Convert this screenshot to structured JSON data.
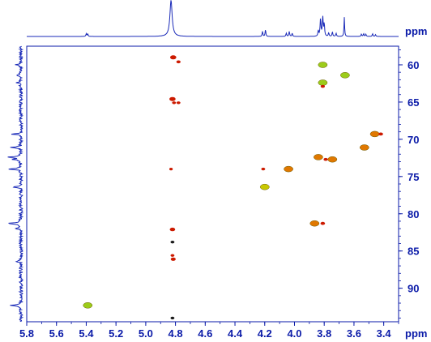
{
  "chart_data": {
    "type": "scatter",
    "x_axis": {
      "unit": "ppm",
      "range": [
        5.8,
        3.3
      ],
      "reversed": true,
      "ticks": [
        "5.8",
        "5.6",
        "5.4",
        "5.2",
        "5.0",
        "4.8",
        "4.6",
        "4.4",
        "4.2",
        "4.0",
        "3.8",
        "3.6",
        "3.4"
      ]
    },
    "y_axis": {
      "unit": "ppm",
      "range": [
        57.5,
        94.5
      ],
      "reversed": true,
      "side": "right",
      "ticks": [
        "60",
        "65",
        "70",
        "75",
        "80",
        "85",
        "90"
      ]
    },
    "top_projection": {
      "peaks": [
        {
          "x": 5.4,
          "h": 0.12,
          "w": 0.003
        },
        {
          "x": 5.39,
          "h": 0.12,
          "w": 0.003
        },
        {
          "x": 4.83,
          "h": 1.6,
          "w": 0.009
        },
        {
          "x": 4.215,
          "h": 0.22,
          "w": 0.003
        },
        {
          "x": 4.195,
          "h": 0.3,
          "w": 0.003
        },
        {
          "x": 4.055,
          "h": 0.15,
          "w": 0.003
        },
        {
          "x": 4.035,
          "h": 0.22,
          "w": 0.003
        },
        {
          "x": 4.015,
          "h": 0.14,
          "w": 0.003
        },
        {
          "x": 3.84,
          "h": 0.25,
          "w": 0.003
        },
        {
          "x": 3.825,
          "h": 0.75,
          "w": 0.0035
        },
        {
          "x": 3.81,
          "h": 0.85,
          "w": 0.0035
        },
        {
          "x": 3.8,
          "h": 0.55,
          "w": 0.003
        },
        {
          "x": 3.77,
          "h": 0.16,
          "w": 0.003
        },
        {
          "x": 3.745,
          "h": 0.2,
          "w": 0.003
        },
        {
          "x": 3.72,
          "h": 0.14,
          "w": 0.003
        },
        {
          "x": 3.665,
          "h": 0.85,
          "w": 0.0025
        },
        {
          "x": 3.55,
          "h": 0.1,
          "w": 0.003
        },
        {
          "x": 3.535,
          "h": 0.12,
          "w": 0.003
        },
        {
          "x": 3.52,
          "h": 0.1,
          "w": 0.003
        },
        {
          "x": 3.475,
          "h": 0.12,
          "w": 0.003
        },
        {
          "x": 3.455,
          "h": 0.08,
          "w": 0.003
        }
      ]
    },
    "left_projection": {
      "peaks": [
        {
          "y": 60.0,
          "h": 0.35
        },
        {
          "y": 61.4,
          "h": 0.4
        },
        {
          "y": 62.4,
          "h": 0.45
        },
        {
          "y": 69.3,
          "h": 0.6
        },
        {
          "y": 71.1,
          "h": 0.7
        },
        {
          "y": 72.4,
          "h": 0.85
        },
        {
          "y": 72.7,
          "h": 0.6
        },
        {
          "y": 74.0,
          "h": 1.0
        },
        {
          "y": 76.4,
          "h": 0.5
        },
        {
          "y": 81.3,
          "h": 1.0
        },
        {
          "y": 82.0,
          "h": 0.35
        },
        {
          "y": 86.4,
          "h": 0.3
        },
        {
          "y": 92.3,
          "h": 0.7
        }
      ]
    },
    "cross_peaks": [
      {
        "x": 4.815,
        "y": 59.0,
        "color": "#cc1a00",
        "size": 0.6
      },
      {
        "x": 4.78,
        "y": 59.6,
        "color": "#cc1a00",
        "size": 0.35
      },
      {
        "x": 3.81,
        "y": 60.0,
        "color": "#9ccc1a",
        "size": 1.0
      },
      {
        "x": 3.66,
        "y": 61.4,
        "color": "#9ccc1a",
        "size": 1.0
      },
      {
        "x": 3.81,
        "y": 62.4,
        "color": "#9ccc1a",
        "size": 1.0
      },
      {
        "x": 3.81,
        "y": 62.9,
        "color": "#cc1a00",
        "size": 0.35
      },
      {
        "x": 4.82,
        "y": 64.6,
        "color": "#cc1a00",
        "size": 0.6
      },
      {
        "x": 4.81,
        "y": 65.1,
        "color": "#cc1a00",
        "size": 0.3
      },
      {
        "x": 4.78,
        "y": 65.1,
        "color": "#cc1a00",
        "size": 0.3
      },
      {
        "x": 3.46,
        "y": 69.3,
        "color": "#e07800",
        "size": 1.0
      },
      {
        "x": 3.42,
        "y": 69.3,
        "color": "#cc1a00",
        "size": 0.4
      },
      {
        "x": 3.53,
        "y": 71.1,
        "color": "#e07800",
        "size": 1.0
      },
      {
        "x": 3.84,
        "y": 72.4,
        "color": "#e07800",
        "size": 1.0
      },
      {
        "x": 3.745,
        "y": 72.7,
        "color": "#e07800",
        "size": 1.0
      },
      {
        "x": 3.79,
        "y": 72.7,
        "color": "#cc1a00",
        "size": 0.35
      },
      {
        "x": 4.83,
        "y": 74.0,
        "color": "#cc1a00",
        "size": 0.25
      },
      {
        "x": 4.21,
        "y": 74.0,
        "color": "#cc1a00",
        "size": 0.3
      },
      {
        "x": 4.04,
        "y": 74.0,
        "color": "#e07800",
        "size": 1.0
      },
      {
        "x": 4.2,
        "y": 76.4,
        "color": "#c8c800",
        "size": 1.0
      },
      {
        "x": 3.865,
        "y": 81.3,
        "color": "#e07800",
        "size": 1.0
      },
      {
        "x": 3.81,
        "y": 81.3,
        "color": "#cc1a00",
        "size": 0.4
      },
      {
        "x": 4.82,
        "y": 82.1,
        "color": "#cc1a00",
        "size": 0.5
      },
      {
        "x": 4.82,
        "y": 83.8,
        "color": "#1a1a1a",
        "size": 0.3
      },
      {
        "x": 4.82,
        "y": 85.6,
        "color": "#cc1a00",
        "size": 0.3
      },
      {
        "x": 4.815,
        "y": 86.1,
        "color": "#cc1a00",
        "size": 0.45
      },
      {
        "x": 5.39,
        "y": 92.3,
        "color": "#9ccc1a",
        "size": 1.0
      },
      {
        "x": 4.82,
        "y": 94.0,
        "color": "#1a1a1a",
        "size": 0.3
      }
    ]
  },
  "colors": {
    "axis": "#0a1aa8",
    "spectrum": "#1a2ab8",
    "background": "#ffffff"
  }
}
